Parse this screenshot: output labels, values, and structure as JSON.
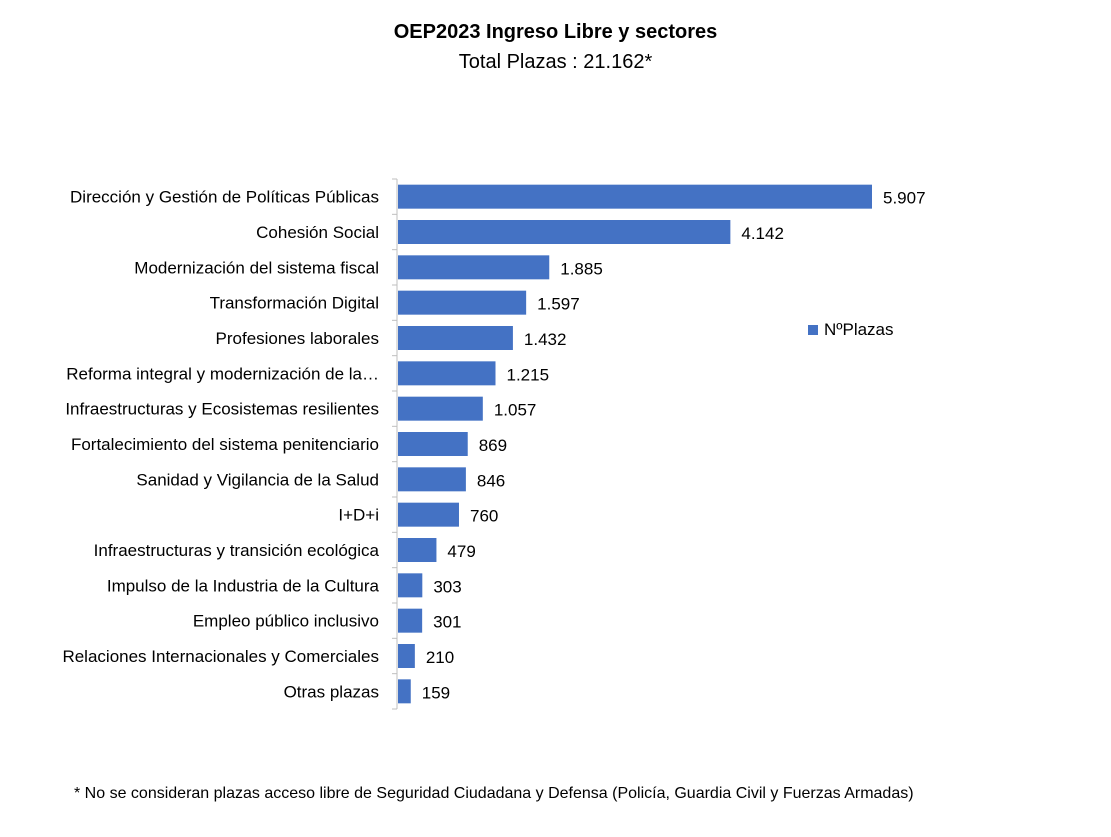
{
  "chart_data": {
    "type": "bar",
    "orientation": "horizontal",
    "title": "OEP2023 Ingreso Libre y sectores",
    "subtitle": "Total Plazas : 21.162*",
    "categories": [
      "Dirección y Gestión de Políticas Públicas",
      "Cohesión Social",
      "Modernización del sistema fiscal",
      "Transformación Digital",
      "Profesiones laborales",
      "Reforma integral y modernización de la…",
      "Infraestructuras y Ecosistemas resilientes",
      "Fortalecimiento del sistema penitenciario",
      "Sanidad y Vigilancia de la Salud",
      "I+D+i",
      "Infraestructuras y transición ecológica",
      "Impulso de la Industria de la Cultura",
      "Empleo público inclusivo",
      "Relaciones Internacionales y Comerciales",
      "Otras plazas"
    ],
    "series": [
      {
        "name": "NºPlazas",
        "values": [
          5907,
          4142,
          1885,
          1597,
          1432,
          1215,
          1057,
          869,
          846,
          760,
          479,
          303,
          301,
          210,
          159
        ],
        "labels": [
          "5.907",
          "4.142",
          "1.885",
          "1.597",
          "1.432",
          "1.215",
          "1.057",
          "869",
          "846",
          "760",
          "479",
          "303",
          "301",
          "210",
          "159"
        ],
        "color": "#4472C4"
      }
    ],
    "xlim": [
      0,
      5907
    ],
    "grid": false,
    "legend_position": "right"
  },
  "footnote": "* No se consideran plazas acceso libre de Seguridad Ciudadana y Defensa (Policía, Guardia Civil y Fuerzas Armadas)"
}
